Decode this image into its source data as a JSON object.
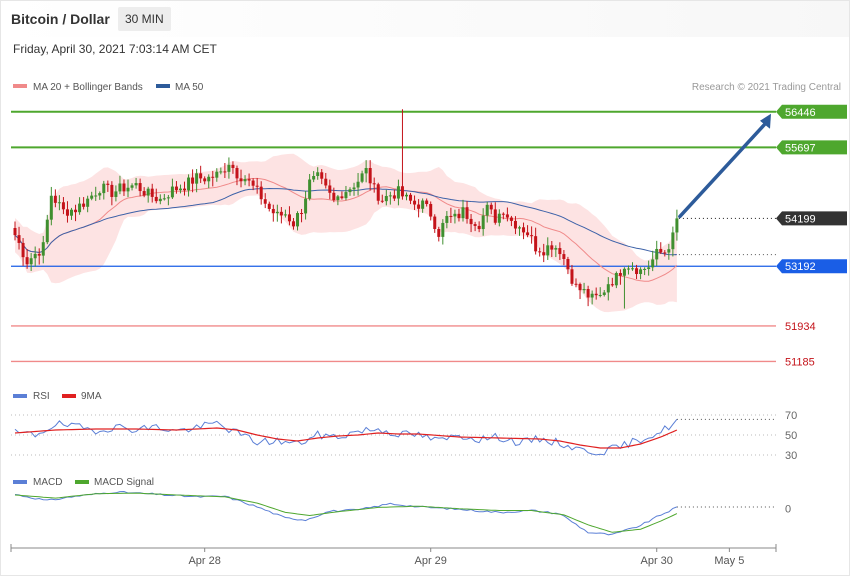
{
  "header": {
    "title": "Bitcoin / Dollar",
    "timeframe": "30 MIN",
    "timestamp": "Friday, April 30, 2021 7:03:14 AM CET"
  },
  "legend": {
    "main": [
      {
        "name": "MA 20 + Bollinger Bands",
        "color": "#f08a8a"
      },
      {
        "name": "MA 50",
        "color": "#2d5b9a"
      }
    ],
    "rsi": [
      {
        "name": "RSI",
        "color": "#5b7fd6"
      },
      {
        "name": "9MA",
        "color": "#e02020"
      }
    ],
    "macd": [
      {
        "name": "MACD",
        "color": "#5b7fd6"
      },
      {
        "name": "MACD Signal",
        "color": "#4ea72e"
      }
    ]
  },
  "credit": "Research © 2021 Trading Central",
  "colors": {
    "up": "#3f8f2f",
    "down": "#c4131a",
    "resistance": "#4ea72e",
    "pivot": "#1a5ee6",
    "support": "#f08a8a",
    "current": "#333333",
    "arrow": "#2d5b9a",
    "band_fill": "#fde3e3"
  },
  "chart_data": [
    {
      "type": "candlestick",
      "y_range": [
        50900,
        56800
      ],
      "levels": [
        {
          "kind": "resistance",
          "value": 56446,
          "label": "56446"
        },
        {
          "kind": "resistance",
          "value": 55697,
          "label": "55697"
        },
        {
          "kind": "current",
          "value": 54199,
          "label": "54199"
        },
        {
          "kind": "pivot",
          "value": 53192,
          "label": "53192"
        },
        {
          "kind": "support",
          "value": 51934,
          "label": "51934"
        },
        {
          "kind": "support",
          "value": 51185,
          "label": "51185"
        }
      ],
      "x_labels": [
        {
          "label": "Apr 28",
          "index": 47
        },
        {
          "label": "Apr 29",
          "index": 103
        },
        {
          "label": "Apr 30",
          "index": 159
        },
        {
          "label": "May 5",
          "index": 177
        }
      ],
      "close_path_anchors": [
        [
          0,
          53850
        ],
        [
          3,
          53300
        ],
        [
          7,
          53600
        ],
        [
          9,
          54700
        ],
        [
          12,
          54350
        ],
        [
          15,
          54400
        ],
        [
          18,
          54600
        ],
        [
          21,
          54850
        ],
        [
          24,
          54750
        ],
        [
          27,
          54850
        ],
        [
          30,
          54900
        ],
        [
          33,
          54700
        ],
        [
          36,
          54600
        ],
        [
          39,
          54800
        ],
        [
          42,
          54900
        ],
        [
          45,
          55050
        ],
        [
          48,
          55050
        ],
        [
          51,
          55150
        ],
        [
          53,
          55400
        ],
        [
          55,
          55150
        ],
        [
          57,
          55050
        ],
        [
          59,
          54850
        ],
        [
          61,
          54650
        ],
        [
          63,
          54400
        ],
        [
          65,
          54250
        ],
        [
          67,
          54300
        ],
        [
          69,
          54100
        ],
        [
          71,
          54400
        ],
        [
          73,
          54950
        ],
        [
          75,
          55050
        ],
        [
          77,
          54800
        ],
        [
          79,
          54550
        ],
        [
          81,
          54750
        ],
        [
          83,
          54850
        ],
        [
          85,
          55000
        ],
        [
          87,
          55200
        ],
        [
          89,
          54800
        ],
        [
          91,
          54600
        ],
        [
          93,
          54700
        ],
        [
          95,
          54750
        ],
        [
          97,
          54600
        ],
        [
          99,
          54500
        ],
        [
          101,
          54500
        ],
        [
          103,
          54300
        ],
        [
          105,
          53900
        ],
        [
          107,
          54200
        ],
        [
          109,
          54200
        ],
        [
          111,
          54350
        ],
        [
          113,
          54200
        ],
        [
          115,
          54100
        ],
        [
          117,
          54400
        ],
        [
          119,
          54200
        ],
        [
          121,
          54400
        ],
        [
          123,
          54150
        ],
        [
          125,
          54050
        ],
        [
          127,
          53900
        ],
        [
          129,
          53600
        ],
        [
          131,
          53550
        ],
        [
          133,
          53650
        ],
        [
          135,
          53550
        ],
        [
          137,
          53150
        ],
        [
          139,
          52750
        ],
        [
          141,
          52650
        ],
        [
          143,
          52500
        ],
        [
          145,
          52550
        ],
        [
          147,
          52850
        ],
        [
          149,
          52950
        ],
        [
          151,
          53250
        ],
        [
          153,
          53200
        ],
        [
          155,
          53100
        ],
        [
          157,
          53200
        ],
        [
          159,
          53450
        ],
        [
          161,
          53500
        ],
        [
          163,
          53800
        ],
        [
          164,
          54199
        ]
      ],
      "current_index": 164,
      "last_index": 177
    },
    {
      "type": "line",
      "name": "RSI",
      "y_range": [
        25,
        75
      ],
      "levels": [
        {
          "value": 70,
          "label": "70"
        },
        {
          "value": 50,
          "label": "50"
        },
        {
          "value": 30,
          "label": "30"
        }
      ],
      "series": [
        {
          "name": "RSI",
          "anchors": [
            [
              0,
              52
            ],
            [
              5,
              50
            ],
            [
              10,
              61
            ],
            [
              15,
              58
            ],
            [
              20,
              55
            ],
            [
              25,
              58
            ],
            [
              30,
              56
            ],
            [
              35,
              58
            ],
            [
              40,
              54
            ],
            [
              45,
              57
            ],
            [
              50,
              62
            ],
            [
              55,
              52
            ],
            [
              60,
              43
            ],
            [
              65,
              44
            ],
            [
              70,
              41
            ],
            [
              75,
              50
            ],
            [
              80,
              48
            ],
            [
              85,
              54
            ],
            [
              90,
              56
            ],
            [
              95,
              51
            ],
            [
              100,
              50
            ],
            [
              105,
              44
            ],
            [
              110,
              50
            ],
            [
              115,
              46
            ],
            [
              120,
              48
            ],
            [
              125,
              42
            ],
            [
              130,
              46
            ],
            [
              135,
              42
            ],
            [
              140,
              35
            ],
            [
              145,
              33
            ],
            [
              150,
              38
            ],
            [
              155,
              46
            ],
            [
              160,
              53
            ],
            [
              164,
              64
            ]
          ]
        },
        {
          "name": "9MA",
          "anchors": [
            [
              0,
              52
            ],
            [
              10,
              55
            ],
            [
              20,
              56
            ],
            [
              30,
              56
            ],
            [
              40,
              55
            ],
            [
              50,
              57
            ],
            [
              55,
              55
            ],
            [
              60,
              50
            ],
            [
              65,
              46
            ],
            [
              70,
              44
            ],
            [
              75,
              47
            ],
            [
              80,
              49
            ],
            [
              85,
              50
            ],
            [
              90,
              52
            ],
            [
              95,
              51
            ],
            [
              100,
              51
            ],
            [
              110,
              48
            ],
            [
              120,
              47
            ],
            [
              130,
              46
            ],
            [
              135,
              44
            ],
            [
              140,
              40
            ],
            [
              145,
              37
            ],
            [
              150,
              37
            ],
            [
              155,
              41
            ],
            [
              160,
              48
            ],
            [
              164,
              55
            ]
          ]
        }
      ]
    },
    {
      "type": "line",
      "name": "MACD",
      "y_range": [
        -600,
        300
      ],
      "levels": [
        {
          "value": 0,
          "label": "0"
        }
      ],
      "series": [
        {
          "name": "MACD",
          "anchors": [
            [
              0,
              230
            ],
            [
              8,
              130
            ],
            [
              15,
              200
            ],
            [
              25,
              270
            ],
            [
              35,
              230
            ],
            [
              45,
              190
            ],
            [
              52,
              200
            ],
            [
              60,
              30
            ],
            [
              67,
              -150
            ],
            [
              72,
              -180
            ],
            [
              78,
              -40
            ],
            [
              85,
              -20
            ],
            [
              93,
              80
            ],
            [
              100,
              30
            ],
            [
              110,
              -10
            ],
            [
              120,
              -60
            ],
            [
              128,
              -30
            ],
            [
              135,
              -80
            ],
            [
              142,
              -380
            ],
            [
              148,
              -420
            ],
            [
              155,
              -270
            ],
            [
              160,
              -100
            ],
            [
              164,
              20
            ]
          ]
        },
        {
          "name": "MACD Signal",
          "anchors": [
            [
              0,
              220
            ],
            [
              10,
              170
            ],
            [
              20,
              240
            ],
            [
              30,
              250
            ],
            [
              40,
              220
            ],
            [
              52,
              190
            ],
            [
              60,
              90
            ],
            [
              67,
              -60
            ],
            [
              73,
              -110
            ],
            [
              80,
              -50
            ],
            [
              90,
              20
            ],
            [
              100,
              40
            ],
            [
              110,
              0
            ],
            [
              120,
              -30
            ],
            [
              128,
              -30
            ],
            [
              136,
              -100
            ],
            [
              142,
              -260
            ],
            [
              148,
              -380
            ],
            [
              155,
              -330
            ],
            [
              160,
              -200
            ],
            [
              164,
              -80
            ]
          ]
        }
      ]
    }
  ]
}
